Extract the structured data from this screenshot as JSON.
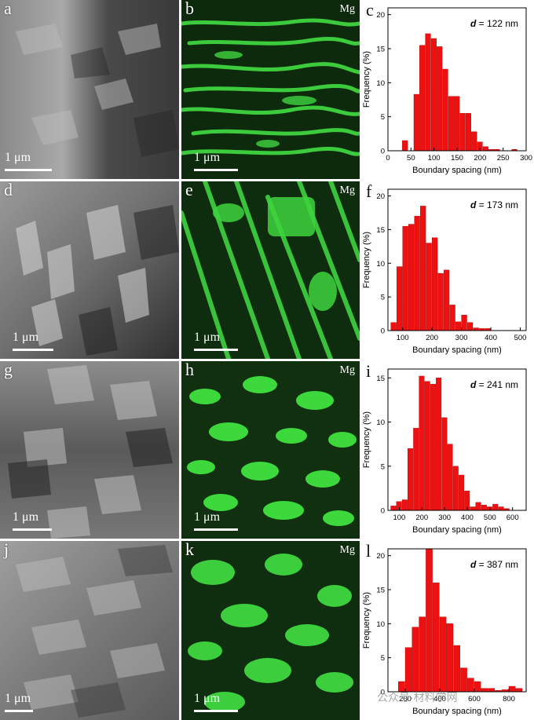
{
  "panels": [
    {
      "micro_label": "a",
      "map_label": "b",
      "chart_label": "c",
      "scale": "1 μm",
      "map_element": "Mg"
    },
    {
      "micro_label": "d",
      "map_label": "e",
      "chart_label": "f",
      "scale": "1 μm",
      "map_element": "Mg"
    },
    {
      "micro_label": "g",
      "map_label": "h",
      "chart_label": "i",
      "scale": "1 μm",
      "map_element": "Mg"
    },
    {
      "micro_label": "j",
      "map_label": "k",
      "chart_label": "l",
      "scale": "1 μm",
      "map_element": "Mg"
    }
  ],
  "chart_data": [
    {
      "type": "bar",
      "annotation_symbol": "d",
      "annotation_value": "= 122 nm",
      "xlabel": "Boundary spacing (nm)",
      "ylabel": "Frequency (%)",
      "xlim": [
        0,
        300
      ],
      "ylim": [
        0,
        21
      ],
      "x_ticks": [
        0,
        50,
        100,
        150,
        200,
        250,
        300
      ],
      "y_ticks": [
        0,
        5,
        10,
        15,
        20
      ],
      "bin_width": 12.5,
      "x": [
        37.5,
        50,
        62.5,
        75,
        87.5,
        100,
        112.5,
        125,
        137.5,
        150,
        162.5,
        175,
        187.5,
        200,
        212.5,
        225,
        237.5,
        250,
        262.5,
        275,
        287.5
      ],
      "values": [
        1.5,
        0,
        8.3,
        15.5,
        17.2,
        16.5,
        15.3,
        12.0,
        8.0,
        8.0,
        5.5,
        5.5,
        2.8,
        1.3,
        0.6,
        0.2,
        0.2,
        0,
        0,
        0.2,
        0
      ],
      "color": "#ee1111"
    },
    {
      "type": "bar",
      "annotation_symbol": "d",
      "annotation_value": "= 173 nm",
      "xlabel": "Boundary spacing (nm)",
      "ylabel": "Frequency (%)",
      "xlim": [
        50,
        520
      ],
      "ylim": [
        0,
        21
      ],
      "x_ticks": [
        100,
        200,
        300,
        400,
        500
      ],
      "y_ticks": [
        0,
        5,
        10,
        15,
        20
      ],
      "bin_width": 20,
      "x": [
        70,
        90,
        110,
        130,
        150,
        170,
        190,
        210,
        230,
        250,
        270,
        290,
        310,
        330,
        350,
        370,
        390,
        410,
        430,
        450,
        470,
        490
      ],
      "values": [
        1.2,
        9.5,
        15.5,
        15.8,
        17.0,
        18.5,
        13.0,
        13.8,
        8.5,
        9.0,
        3.8,
        1.3,
        2.3,
        1.2,
        0.4,
        0.3,
        0.3,
        0,
        0,
        0,
        0,
        0
      ],
      "color": "#ee1111"
    },
    {
      "type": "bar",
      "annotation_symbol": "d",
      "annotation_value": "= 241 nm",
      "xlabel": "Boundary spacing (nm)",
      "ylabel": "Frequency (%)",
      "xlim": [
        50,
        660
      ],
      "ylim": [
        0,
        16
      ],
      "x_ticks": [
        100,
        200,
        300,
        400,
        500,
        600
      ],
      "y_ticks": [
        0,
        5,
        10,
        15
      ],
      "bin_width": 25,
      "x": [
        75,
        100,
        125,
        150,
        175,
        200,
        225,
        250,
        275,
        300,
        325,
        350,
        375,
        400,
        425,
        450,
        475,
        500,
        525,
        550,
        575,
        600,
        625
      ],
      "values": [
        0.5,
        1,
        1.2,
        7,
        9.3,
        15.2,
        14.6,
        14.3,
        15,
        10.5,
        7.5,
        5,
        4,
        2.2,
        0.4,
        0.9,
        0.6,
        0.4,
        0.7,
        0.4,
        0.2,
        0,
        0
      ],
      "color": "#ee1111"
    },
    {
      "type": "bar",
      "annotation_symbol": "d",
      "annotation_value": "= 387 nm",
      "xlabel": "Boundary spacing (nm)",
      "ylabel": "Frequency (%)",
      "xlim": [
        100,
        900
      ],
      "ylim": [
        0,
        21
      ],
      "x_ticks": [
        200,
        400,
        600,
        800
      ],
      "y_ticks": [
        0,
        5,
        10,
        15,
        20
      ],
      "bin_width": 40,
      "x": [
        180,
        220,
        260,
        300,
        340,
        380,
        420,
        460,
        500,
        540,
        580,
        620,
        660,
        700,
        740,
        780,
        820,
        860
      ],
      "values": [
        1.5,
        6.5,
        9.5,
        11.0,
        21.0,
        16.0,
        11.0,
        10.0,
        6.8,
        3.5,
        2.0,
        1.5,
        0.5,
        0.5,
        0.2,
        0.3,
        0.8,
        0.5
      ],
      "color": "#ee1111"
    }
  ],
  "watermark": "公众号·材料学网"
}
